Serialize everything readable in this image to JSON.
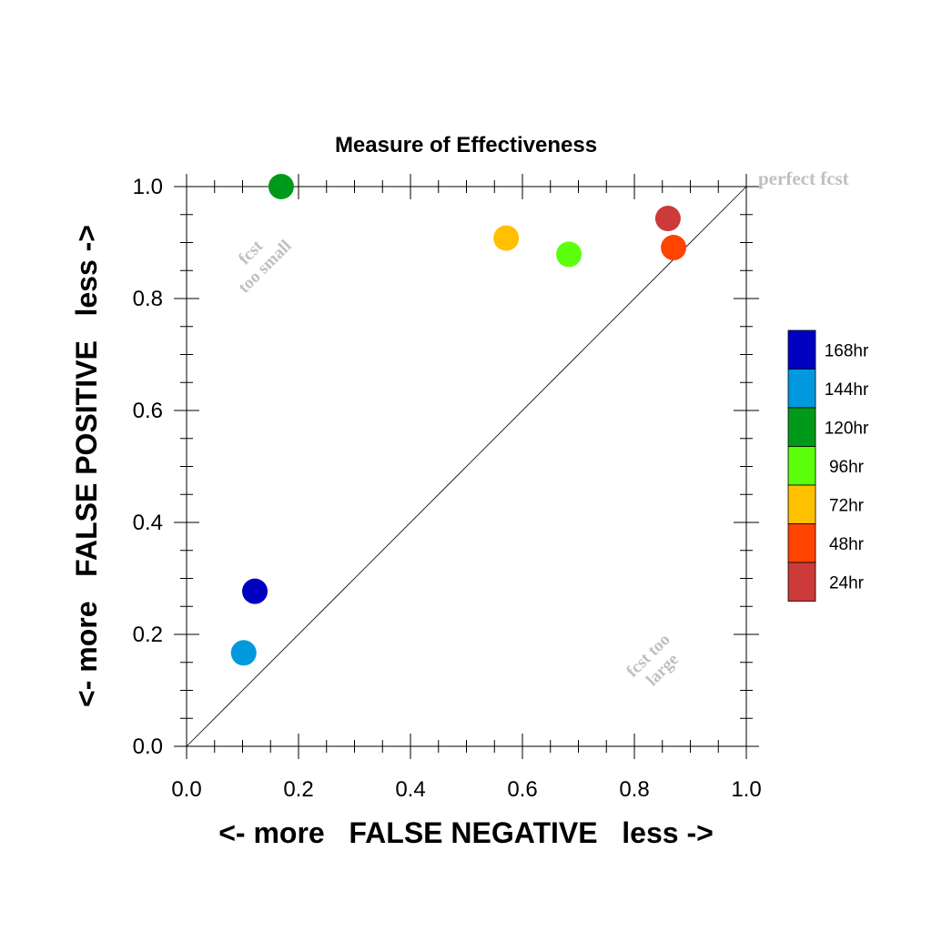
{
  "chart_data": {
    "type": "scatter",
    "title": "Measure of Effectiveness",
    "xlabel": "<- more   FALSE NEGATIVE   less ->",
    "ylabel": "<- more   FALSE POSITIVE   less ->",
    "xlim": [
      0.0,
      1.0
    ],
    "ylim": [
      0.0,
      1.0
    ],
    "xticks": [
      "0.0",
      "0.2",
      "0.4",
      "0.6",
      "0.8",
      "1.0"
    ],
    "yticks": [
      "0.0",
      "0.2",
      "0.4",
      "0.6",
      "0.8",
      "1.0"
    ],
    "grid": false,
    "reference_line": "diagonal y = x",
    "legend_placement": "right",
    "annotations": {
      "perfect": "perfect fcst",
      "small_line1": "fcst",
      "small_line2": "too small",
      "large_line1": "fcst too",
      "large_line2": "large"
    },
    "series": [
      {
        "name": "168hr",
        "color": "#0000c0",
        "x": 0.122,
        "y": 0.277
      },
      {
        "name": "144hr",
        "color": "#0099dd",
        "x": 0.102,
        "y": 0.167
      },
      {
        "name": "120hr",
        "color": "#009a1a",
        "x": 0.169,
        "y": 1.0
      },
      {
        "name": "96hr",
        "color": "#5cff0c",
        "x": 0.683,
        "y": 0.879
      },
      {
        "name": "72hr",
        "color": "#ffc000",
        "x": 0.571,
        "y": 0.908
      },
      {
        "name": "48hr",
        "color": "#ff4400",
        "x": 0.87,
        "y": 0.891
      },
      {
        "name": "24hr",
        "color": "#cc3a3a",
        "x": 0.86,
        "y": 0.943
      }
    ]
  }
}
